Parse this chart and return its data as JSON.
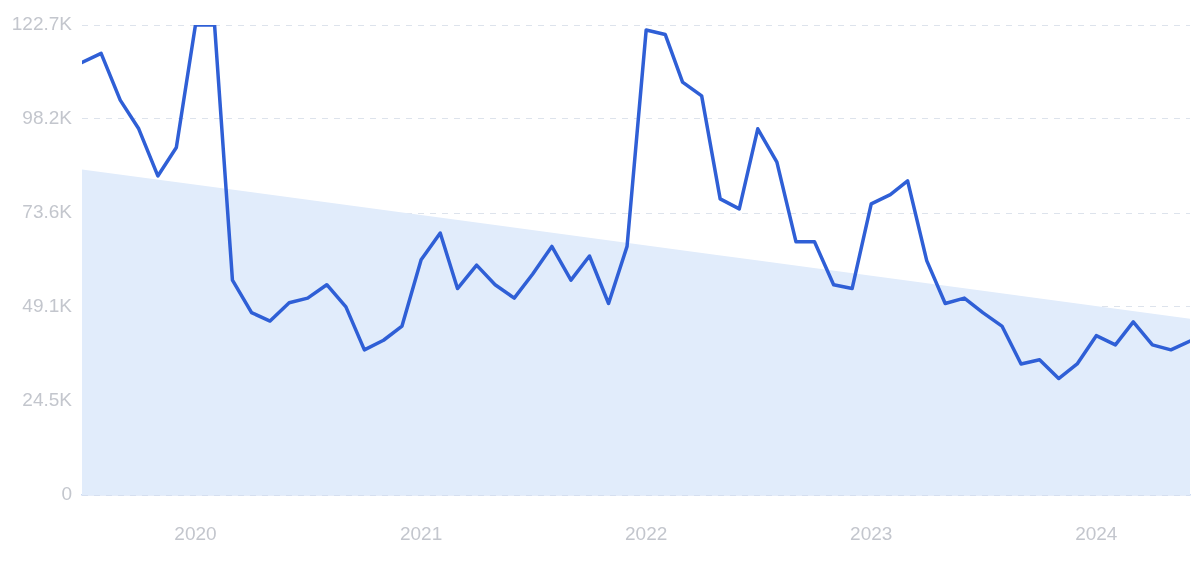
{
  "chart_data": {
    "type": "line",
    "x": [
      "2019-07",
      "2019-08",
      "2019-09",
      "2019-10",
      "2019-11",
      "2019-12",
      "2020-01",
      "2020-02",
      "2020-03",
      "2020-04",
      "2020-05",
      "2020-06",
      "2020-07",
      "2020-08",
      "2020-09",
      "2020-10",
      "2020-11",
      "2020-12",
      "2021-01",
      "2021-02",
      "2021-03",
      "2021-04",
      "2021-05",
      "2021-06",
      "2021-07",
      "2021-08",
      "2021-09",
      "2021-10",
      "2021-11",
      "2021-12",
      "2022-01",
      "2022-02",
      "2022-03",
      "2022-04",
      "2022-05",
      "2022-06",
      "2022-07",
      "2022-08",
      "2022-09",
      "2022-10",
      "2022-11",
      "2022-12",
      "2023-01",
      "2023-02",
      "2023-03",
      "2023-04",
      "2023-05",
      "2023-06",
      "2023-07",
      "2023-08",
      "2023-09",
      "2023-10",
      "2023-11",
      "2023-12",
      "2024-01",
      "2024-02",
      "2024-03",
      "2024-04",
      "2024-05",
      "2024-06"
    ],
    "series": [
      {
        "type": "area",
        "x": [
          "2019-07",
          "2024-06"
        ],
        "color": "#e1ecfb",
        "values": [
          85000,
          46000
        ]
      },
      {
        "color": "#2f5fd6",
        "values": [
          112900,
          115300,
          103100,
          95600,
          83300,
          90700,
          122700,
          122700,
          56100,
          47600,
          45400,
          50200,
          51400,
          54900,
          49100,
          37900,
          40400,
          44100,
          61400,
          68400,
          53900,
          60000,
          54900,
          51400,
          57700,
          64900,
          56100,
          62400,
          50000,
          64900,
          121400,
          120200,
          107800,
          104200,
          77300,
          74700,
          95600,
          86900,
          66100,
          66100,
          54900,
          53900,
          76000,
          78400,
          82000,
          61200,
          50000,
          51400,
          47600,
          44100,
          34200,
          35300,
          30400,
          34200,
          41600,
          39200,
          45200,
          39200,
          37900,
          40200
        ]
      }
    ],
    "xlim": [
      "2019-07",
      "2024-06"
    ],
    "xticks": [
      {
        "value": "2020-01",
        "label": "2020"
      },
      {
        "value": "2021-01",
        "label": "2021"
      },
      {
        "value": "2022-01",
        "label": "2022"
      },
      {
        "value": "2023-01",
        "label": "2023"
      },
      {
        "value": "2024-01",
        "label": "2024"
      }
    ],
    "ylim": [
      0,
      122700
    ],
    "yticks": [
      {
        "value": 0,
        "label": "0"
      },
      {
        "value": 24500,
        "label": "24.5K"
      },
      {
        "value": 49100,
        "label": "49.1K"
      },
      {
        "value": 73600,
        "label": "73.6K"
      },
      {
        "value": 98200,
        "label": "98.2K"
      },
      {
        "value": 122700,
        "label": "122.7K"
      }
    ],
    "grid": "y",
    "legend": false,
    "marker": "none",
    "line_style": "solid"
  }
}
